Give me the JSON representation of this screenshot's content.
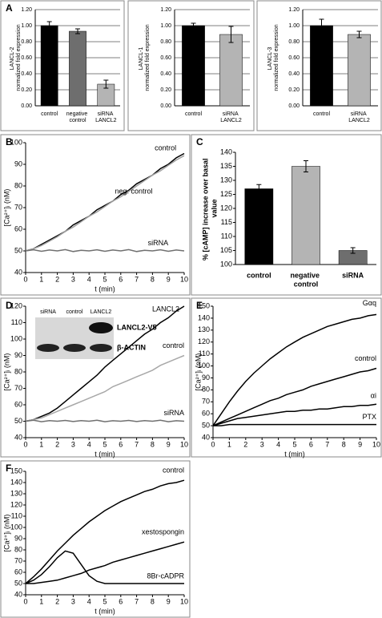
{
  "chart_data": [
    {
      "type": "bar",
      "panel": "A",
      "ylabel": "LANCL-2 normalized fold expression",
      "categories": [
        "control",
        "negative control",
        "siRNA LANCL2"
      ],
      "values": [
        1.0,
        0.93,
        0.27
      ],
      "errors": [
        0.05,
        0.03,
        0.05
      ],
      "colors": [
        "#000000",
        "#6e6e6e",
        "#b4b4b4"
      ],
      "ylim": [
        0,
        1.2
      ],
      "yticks": [
        {
          "value": 0,
          "label": "0.00"
        },
        {
          "value": 0.2,
          "label": "0.20"
        },
        {
          "value": 0.4,
          "label": "0.40"
        },
        {
          "value": 0.6,
          "label": "0.60"
        },
        {
          "value": 0.8,
          "label": "0.80"
        },
        {
          "value": 1.0,
          "label": "1.00"
        },
        {
          "value": 1.2,
          "label": "1.20"
        }
      ],
      "grid": true
    },
    {
      "type": "bar",
      "ylabel": "LANCL-1 normalized fold expression",
      "categories": [
        "control",
        "siRNA LANCL2"
      ],
      "values": [
        1.0,
        0.89
      ],
      "errors": [
        0.03,
        0.1
      ],
      "colors": [
        "#000000",
        "#b4b4b4"
      ],
      "ylim": [
        0,
        1.2
      ],
      "yticks": [
        {
          "value": 0,
          "label": "0.00"
        },
        {
          "value": 0.2,
          "label": "0.20"
        },
        {
          "value": 0.4,
          "label": "0.40"
        },
        {
          "value": 0.6,
          "label": "0.60"
        },
        {
          "value": 0.8,
          "label": "0.80"
        },
        {
          "value": 1.0,
          "label": "1.00"
        },
        {
          "value": 1.2,
          "label": "1.20"
        }
      ],
      "grid": true
    },
    {
      "type": "bar",
      "ylabel": "LANCL-3 normalized fold expression",
      "categories": [
        "control",
        "siRNA LANCL2"
      ],
      "values": [
        1.0,
        0.89
      ],
      "errors": [
        0.08,
        0.04
      ],
      "colors": [
        "#000000",
        "#b4b4b4"
      ],
      "ylim": [
        0,
        1.2
      ],
      "yticks": [
        {
          "value": 0,
          "label": "0.00"
        },
        {
          "value": 0.2,
          "label": "0.20"
        },
        {
          "value": 0.4,
          "label": "0.40"
        },
        {
          "value": 0.6,
          "label": "0.60"
        },
        {
          "value": 0.8,
          "label": "0.80"
        },
        {
          "value": 1.0,
          "label": "1.00"
        },
        {
          "value": 1.2,
          "label": "1.20"
        }
      ],
      "grid": true
    },
    {
      "type": "line",
      "panel": "B",
      "xlabel": "t (min)",
      "ylabel": "[Ca²⁺]ᵢ (nM)",
      "x": [
        0,
        0.5,
        1,
        1.5,
        2,
        2.5,
        3,
        3.5,
        4,
        4.5,
        5,
        5.5,
        6,
        6.5,
        7,
        7.5,
        8,
        8.5,
        9,
        9.5,
        10
      ],
      "series": [
        {
          "name": "control",
          "color": "#000000",
          "values": [
            50,
            51,
            53,
            55,
            57,
            59,
            62,
            64,
            66,
            69,
            71,
            73,
            76,
            78,
            81,
            83,
            85,
            88,
            90,
            93,
            95
          ]
        },
        {
          "name": "neg. control",
          "color": "#a0a0a0",
          "values": [
            50,
            51,
            52.5,
            54.5,
            56.5,
            59,
            61,
            63.5,
            66,
            68,
            70.5,
            73,
            75,
            77.5,
            80,
            82.5,
            85,
            87,
            89.5,
            92,
            94
          ]
        },
        {
          "name": "siRNA",
          "color": "#707070",
          "values": [
            50,
            50.5,
            49.8,
            50.4,
            50,
            50.6,
            49.7,
            50.3,
            50,
            50.5,
            49.8,
            50.4,
            50,
            50.6,
            49.7,
            50.3,
            50,
            50.5,
            49.8,
            50.4,
            50
          ]
        }
      ],
      "xlim": [
        0,
        10
      ],
      "xticks": [
        0,
        1,
        2,
        3,
        4,
        5,
        6,
        7,
        8,
        9,
        10
      ],
      "ylim": [
        40,
        100
      ],
      "yticks": [
        40,
        50,
        60,
        70,
        80,
        90,
        100
      ]
    },
    {
      "type": "bar",
      "panel": "C",
      "ylabel": "% [cAMP] increase over basal value",
      "categories": [
        "control",
        "negative control",
        "siRNA"
      ],
      "values": [
        127,
        135,
        105
      ],
      "errors": [
        1.5,
        2,
        1
      ],
      "colors": [
        "#000000",
        "#b4b4b4",
        "#6e6e6e"
      ],
      "ylim": [
        100,
        140
      ],
      "yticks": [
        100,
        105,
        110,
        115,
        120,
        125,
        130,
        135,
        140
      ],
      "grid": false
    },
    {
      "type": "line",
      "panel": "D",
      "xlabel": "t (min)",
      "ylabel": "[Ca²⁺]ᵢ (nM)",
      "x": [
        0,
        0.5,
        1,
        1.5,
        2,
        2.5,
        3,
        3.5,
        4,
        4.5,
        5,
        5.5,
        6,
        6.5,
        7,
        7.5,
        8,
        8.5,
        9,
        9.5,
        10
      ],
      "series": [
        {
          "name": "LANCL2",
          "color": "#000000",
          "values": [
            50,
            51,
            53,
            55,
            58,
            62,
            66,
            70,
            74,
            78,
            83,
            87,
            91,
            95,
            99,
            103,
            106,
            110,
            113,
            117,
            120
          ]
        },
        {
          "name": "control",
          "color": "#a8a8a8",
          "values": [
            50,
            51,
            52,
            54,
            56,
            58,
            60,
            62,
            64,
            66,
            68,
            71,
            73,
            75,
            77,
            79,
            81,
            84,
            86,
            88,
            90
          ]
        },
        {
          "name": "siRNA",
          "color": "#707070",
          "values": [
            50,
            50.6,
            49.7,
            50.4,
            50,
            50.5,
            49.8,
            50.4,
            50,
            50.6,
            49.7,
            50.3,
            50,
            50.5,
            49.8,
            50.4,
            50,
            50.6,
            49.7,
            50.3,
            50
          ]
        }
      ],
      "xlim": [
        0,
        10
      ],
      "xticks": [
        0,
        1,
        2,
        3,
        4,
        5,
        6,
        7,
        8,
        9,
        10
      ],
      "ylim": [
        40,
        120
      ],
      "yticks": [
        40,
        50,
        60,
        70,
        80,
        90,
        100,
        110,
        120
      ],
      "inset": {
        "lanes": [
          "siRNA",
          "control",
          "LANCL2"
        ],
        "bands": [
          "LANCL2-V5",
          "β-ACTIN"
        ]
      }
    },
    {
      "type": "line",
      "panel": "E",
      "xlabel": "t (min)",
      "ylabel": "[Ca²⁺]ᵢ (nM)",
      "x": [
        0,
        0.5,
        1,
        1.5,
        2,
        2.5,
        3,
        3.5,
        4,
        4.5,
        5,
        5.5,
        6,
        6.5,
        7,
        7.5,
        8,
        8.5,
        9,
        9.5,
        10
      ],
      "series": [
        {
          "name": "Gαq",
          "color": "#000000",
          "values": [
            50,
            60,
            70,
            79,
            87,
            94,
            100,
            106,
            111,
            116,
            120,
            124,
            127,
            130,
            133,
            135,
            137,
            139,
            140,
            142,
            143
          ]
        },
        {
          "name": "control",
          "color": "#000000",
          "values": [
            50,
            53,
            56,
            59,
            62,
            65,
            68,
            71,
            73,
            76,
            78,
            80,
            83,
            85,
            87,
            89,
            91,
            93,
            95,
            96,
            98
          ]
        },
        {
          "name": "αi",
          "color": "#000000",
          "values": [
            50,
            52,
            54,
            56,
            57,
            58,
            59,
            60,
            61,
            62,
            62,
            63,
            63,
            64,
            64,
            65,
            66,
            66,
            67,
            67,
            68
          ]
        },
        {
          "name": "PTX",
          "color": "#000000",
          "values": [
            50,
            50,
            51,
            51,
            51,
            51,
            51,
            51,
            51,
            51,
            51,
            51,
            51,
            51,
            51,
            51,
            51,
            51,
            51,
            51,
            51
          ]
        }
      ],
      "xlim": [
        0,
        10
      ],
      "xticks": [
        0,
        1,
        2,
        3,
        4,
        5,
        6,
        7,
        8,
        9,
        10
      ],
      "ylim": [
        40,
        150
      ],
      "yticks": [
        40,
        50,
        60,
        70,
        80,
        90,
        100,
        110,
        120,
        130,
        140,
        150
      ]
    },
    {
      "type": "line",
      "panel": "F",
      "xlabel": "t (min)",
      "ylabel": "[Ca²⁺]ᵢ (nM)",
      "x": [
        0,
        0.5,
        1,
        1.5,
        2,
        2.5,
        3,
        3.5,
        4,
        4.5,
        5,
        5.5,
        6,
        6.5,
        7,
        7.5,
        8,
        8.5,
        9,
        9.5,
        10
      ],
      "series": [
        {
          "name": "control",
          "color": "#000000",
          "values": [
            50,
            56,
            63,
            71,
            79,
            86,
            93,
            99,
            105,
            110,
            115,
            119,
            123,
            126,
            129,
            132,
            134,
            137,
            139,
            140,
            142
          ]
        },
        {
          "name": "xestospongin",
          "color": "#000000",
          "values": [
            50,
            50,
            51,
            52,
            53,
            55,
            57,
            59,
            62,
            64,
            66,
            69,
            71,
            73,
            75,
            77,
            79,
            81,
            83,
            85,
            87
          ]
        },
        {
          "name": "8Br-cADPR",
          "color": "#000000",
          "values": [
            50,
            53,
            58,
            65,
            73,
            79,
            77,
            67,
            57,
            52,
            50,
            50,
            50,
            50,
            50,
            50,
            50,
            50,
            50,
            50,
            50
          ]
        }
      ],
      "xlim": [
        0,
        10
      ],
      "xticks": [
        0,
        1,
        2,
        3,
        4,
        5,
        6,
        7,
        8,
        9,
        10
      ],
      "ylim": [
        40,
        150
      ],
      "yticks": [
        40,
        50,
        60,
        70,
        80,
        90,
        100,
        110,
        120,
        130,
        140,
        150
      ]
    }
  ]
}
